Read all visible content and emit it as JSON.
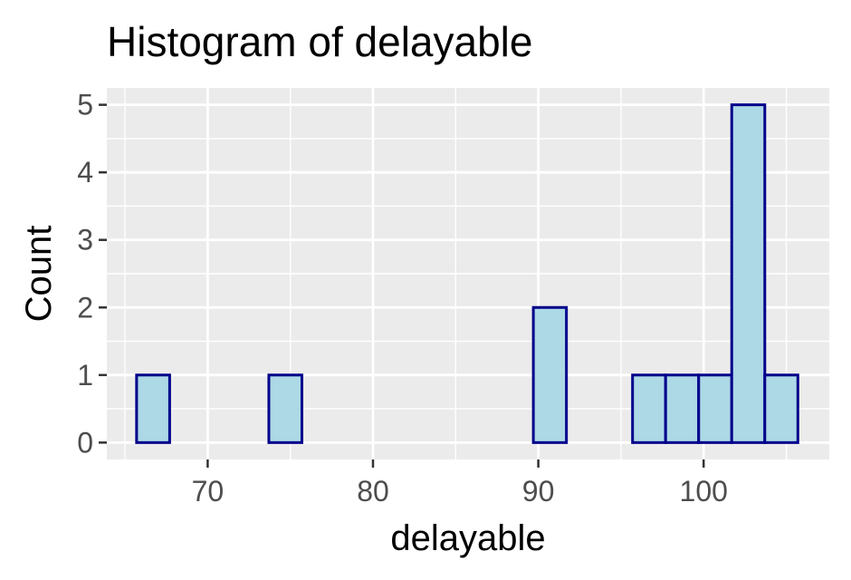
{
  "chart_data": {
    "type": "histogram",
    "title": "Histogram of delayable",
    "xlabel": "delayable",
    "ylabel": "Count",
    "xlim": [
      63.9,
      107.6
    ],
    "ylim": [
      -0.25,
      5.25
    ],
    "x_ticks": [
      70,
      80,
      90,
      100
    ],
    "y_ticks": [
      0,
      1,
      2,
      3,
      4,
      5
    ],
    "bin_width": 2,
    "bins": [
      {
        "start": 65.7,
        "end": 67.7,
        "count": 1
      },
      {
        "start": 67.7,
        "end": 69.7,
        "count": 0
      },
      {
        "start": 69.7,
        "end": 71.7,
        "count": 0
      },
      {
        "start": 71.7,
        "end": 73.7,
        "count": 0
      },
      {
        "start": 73.7,
        "end": 75.7,
        "count": 1
      },
      {
        "start": 75.7,
        "end": 77.7,
        "count": 0
      },
      {
        "start": 77.7,
        "end": 79.7,
        "count": 0
      },
      {
        "start": 79.7,
        "end": 81.7,
        "count": 0
      },
      {
        "start": 81.7,
        "end": 83.7,
        "count": 0
      },
      {
        "start": 83.7,
        "end": 85.7,
        "count": 0
      },
      {
        "start": 85.7,
        "end": 87.7,
        "count": 0
      },
      {
        "start": 87.7,
        "end": 89.7,
        "count": 0
      },
      {
        "start": 89.7,
        "end": 91.7,
        "count": 2
      },
      {
        "start": 91.7,
        "end": 93.7,
        "count": 0
      },
      {
        "start": 93.7,
        "end": 95.7,
        "count": 0
      },
      {
        "start": 95.7,
        "end": 97.7,
        "count": 1
      },
      {
        "start": 97.7,
        "end": 99.7,
        "count": 1
      },
      {
        "start": 99.7,
        "end": 101.7,
        "count": 1
      },
      {
        "start": 101.7,
        "end": 103.7,
        "count": 5
      },
      {
        "start": 103.7,
        "end": 105.7,
        "count": 1
      }
    ],
    "grid": true,
    "colors": {
      "panel": "#ebebeb",
      "grid": "#ffffff",
      "bar_fill": "#add8e6",
      "bar_stroke": "#00008b"
    }
  }
}
